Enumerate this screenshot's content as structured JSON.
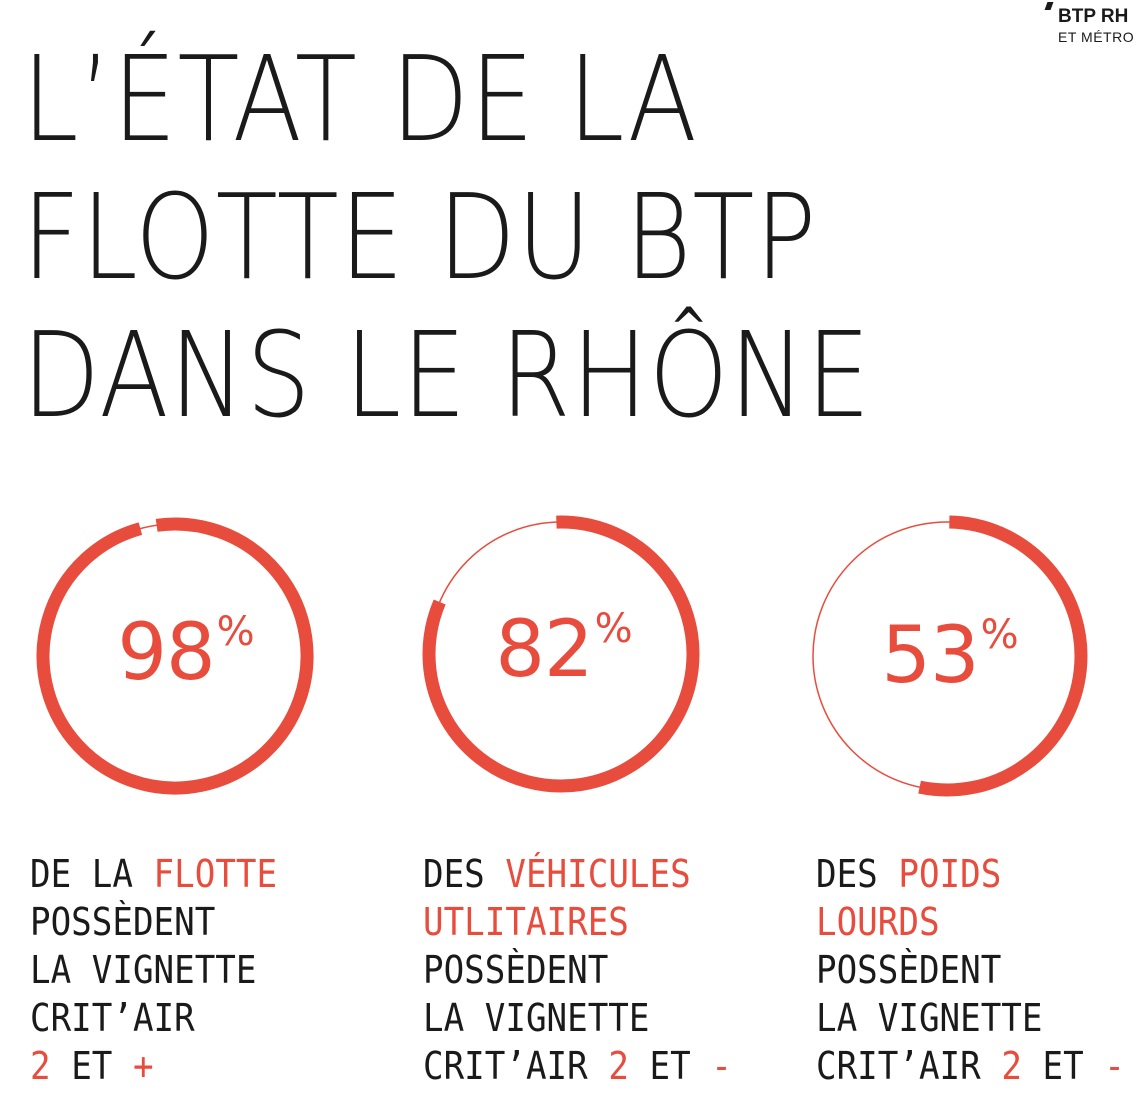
{
  "logo": {
    "line1": "BTP RH",
    "line2": "ET MÉTRO"
  },
  "title": {
    "lines": [
      "L’ÉTAT DE LA",
      "FLOTTE DU BTP",
      "DANS LE RHÔNE"
    ]
  },
  "colors": {
    "accent": "#e84c3d",
    "text": "#1a1a1a"
  },
  "chart_data": [
    {
      "type": "pie",
      "value": 98,
      "unit": "%",
      "label_lines": [
        [
          {
            "text": "DE LA ",
            "hl": false
          },
          {
            "text": "FLOTTE",
            "hl": true
          }
        ],
        [
          {
            "text": "POSSÈDENT",
            "hl": false
          }
        ],
        [
          {
            "text": "LA VIGNETTE",
            "hl": false
          }
        ],
        [
          {
            "text": "CRIT’AIR",
            "hl": false
          }
        ],
        [
          {
            "text": "2",
            "hl": true
          },
          {
            "text": " ET ",
            "hl": false
          },
          {
            "text": "+",
            "hl": true
          }
        ]
      ]
    },
    {
      "type": "pie",
      "value": 82,
      "unit": "%",
      "label_lines": [
        [
          {
            "text": "DES ",
            "hl": false
          },
          {
            "text": "VÉHICULES",
            "hl": true
          }
        ],
        [
          {
            "text": "UTLITAIRES",
            "hl": true
          }
        ],
        [
          {
            "text": "POSSÈDENT",
            "hl": false
          }
        ],
        [
          {
            "text": "LA VIGNETTE",
            "hl": false
          }
        ],
        [
          {
            "text": "CRIT’AIR ",
            "hl": false
          },
          {
            "text": "2",
            "hl": true
          },
          {
            "text": " ET ",
            "hl": false
          },
          {
            "text": "-",
            "hl": true
          }
        ]
      ]
    },
    {
      "type": "pie",
      "value": 53,
      "unit": "%",
      "label_lines": [
        [
          {
            "text": "DES ",
            "hl": false
          },
          {
            "text": "POIDS",
            "hl": true
          }
        ],
        [
          {
            "text": "LOURDS",
            "hl": true
          }
        ],
        [
          {
            "text": "POSSÈDENT",
            "hl": false
          }
        ],
        [
          {
            "text": "LA VIGNETTE",
            "hl": false
          }
        ],
        [
          {
            "text": "CRIT’AIR ",
            "hl": false
          },
          {
            "text": "2",
            "hl": true
          },
          {
            "text": " ET ",
            "hl": false
          },
          {
            "text": "-",
            "hl": true
          }
        ]
      ]
    }
  ]
}
